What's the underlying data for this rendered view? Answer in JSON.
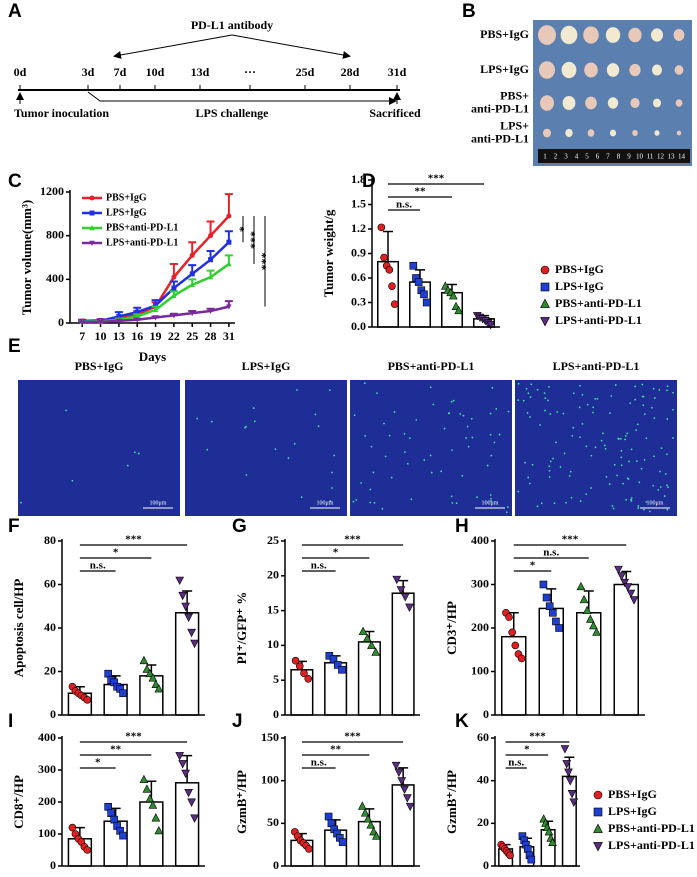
{
  "timeline": {
    "panel": "A",
    "antibody": "PD-L1 antibody",
    "days": [
      "0d",
      "3d",
      "7d",
      "10d",
      "13d",
      "···",
      "25d",
      "28d",
      "31d"
    ],
    "start": "Tumor inoculation",
    "challenge": "LPS challenge",
    "end": "Sacrificed"
  },
  "photo": {
    "panel": "B",
    "rows": [
      [
        "PBS+IgG"
      ],
      [
        "LPS+IgG"
      ],
      [
        "PBS+",
        "anti-PD-L1"
      ],
      [
        "LPS+",
        "anti-PD-L1"
      ]
    ],
    "ruler": [
      "1",
      "2",
      "3",
      "4",
      "5",
      "6",
      "7",
      "8",
      "9",
      "10",
      "11",
      "12",
      "13",
      "14"
    ]
  },
  "microscopy": {
    "panel": "E",
    "titles": [
      "PBS+IgG",
      "LPS+IgG",
      "PBS+anti-PD-L1",
      "LPS+anti-PD-L1"
    ],
    "scale_bar": "100μm"
  },
  "chart_data": [
    {
      "panel": "C",
      "type": "line",
      "x_label": "Days",
      "y_label": "Tumor volume(mm³)",
      "x": [
        7,
        10,
        13,
        16,
        19,
        22,
        25,
        28,
        31
      ],
      "xlim": [
        5,
        32
      ],
      "xticks": [
        7,
        10,
        13,
        16,
        19,
        22,
        25,
        28,
        31
      ],
      "ylim": [
        0,
        1200
      ],
      "yticks": [
        0,
        400,
        800,
        1200
      ],
      "legend": "upper left",
      "significance": [
        "*",
        "***",
        "***"
      ],
      "series": [
        {
          "name": "PBS+IgG",
          "color": "#e8202a",
          "marker": "circle",
          "values": [
            20,
            25,
            40,
            80,
            150,
            420,
            620,
            800,
            980
          ],
          "errors": [
            10,
            10,
            15,
            30,
            40,
            120,
            120,
            130,
            200
          ]
        },
        {
          "name": "LPS+IgG",
          "color": "#2030e0",
          "marker": "square",
          "values": [
            15,
            20,
            60,
            100,
            160,
            320,
            450,
            580,
            740
          ],
          "errors": [
            10,
            10,
            40,
            40,
            50,
            60,
            80,
            80,
            100
          ]
        },
        {
          "name": "PBS+anti-PD-L1",
          "color": "#30d030",
          "marker": "triangle",
          "values": [
            10,
            15,
            30,
            60,
            120,
            250,
            350,
            420,
            540
          ],
          "errors": [
            5,
            5,
            10,
            20,
            30,
            40,
            50,
            60,
            80
          ]
        },
        {
          "name": "LPS+anti-PD-L1",
          "color": "#7a2a9a",
          "marker": "triangle-down",
          "values": [
            5,
            10,
            20,
            30,
            50,
            70,
            90,
            110,
            150
          ],
          "errors": [
            5,
            5,
            5,
            10,
            10,
            15,
            20,
            20,
            50
          ]
        }
      ]
    },
    {
      "panel": "D",
      "type": "bar",
      "y_label": "Tumor weight/g",
      "ylim": [
        0,
        1.8
      ],
      "yticks": [
        {
          "value": 0,
          "label": "0.0"
        },
        0.3,
        0.6,
        0.9,
        1.2,
        1.5,
        1.8
      ],
      "legend": "right",
      "significance": [
        "n.s.",
        "**",
        "***"
      ],
      "series": [
        {
          "name": "PBS+IgG",
          "color": "#e02020",
          "marker": "circle",
          "values": [
            0.8
          ],
          "errors": [
            0.37
          ],
          "points": [
            1.22,
            0.85,
            0.75,
            0.7,
            0.5,
            0.28
          ]
        },
        {
          "name": "LPS+IgG",
          "color": "#1f3fd0",
          "marker": "square",
          "values": [
            0.55
          ],
          "errors": [
            0.15
          ],
          "points": [
            0.75,
            0.6,
            0.55,
            0.45,
            0.4,
            0.3
          ]
        },
        {
          "name": "PBS+anti-PD-L1",
          "color": "#2e8b2e",
          "marker": "triangle",
          "values": [
            0.42
          ],
          "errors": [
            0.1
          ],
          "points": [
            0.5,
            0.45,
            0.42,
            0.38,
            0.25,
            0.2
          ]
        },
        {
          "name": "LPS+anti-PD-L1",
          "color": "#5a2d82",
          "marker": "triangle-down",
          "values": [
            0.1
          ],
          "errors": [
            0.04
          ],
          "points": [
            0.14,
            0.12,
            0.1,
            0.08,
            0.05,
            0.03
          ]
        }
      ]
    },
    {
      "panel": "F",
      "type": "bar",
      "y_label": "Apoptosis cell/HP",
      "ylim": [
        0,
        80
      ],
      "yticks": [
        0,
        20,
        40,
        60,
        80
      ],
      "significance": [
        "n.s.",
        "*",
        "***"
      ],
      "series": [
        {
          "color": "#e02020",
          "marker": "circle",
          "values": [
            10
          ],
          "errors": [
            3
          ],
          "points": [
            13,
            11,
            10,
            9,
            8,
            7
          ]
        },
        {
          "color": "#1f3fd0",
          "marker": "square",
          "values": [
            14
          ],
          "errors": [
            4
          ],
          "points": [
            19,
            16,
            15,
            13,
            12,
            10
          ]
        },
        {
          "color": "#2e8b2e",
          "marker": "triangle",
          "values": [
            18
          ],
          "errors": [
            5
          ],
          "points": [
            25,
            21,
            19,
            17,
            14,
            12
          ]
        },
        {
          "color": "#5a2d82",
          "marker": "triangle-down",
          "values": [
            47
          ],
          "errors": [
            10
          ],
          "points": [
            62,
            55,
            50,
            45,
            38,
            33
          ]
        }
      ]
    },
    {
      "panel": "G",
      "type": "bar",
      "y_label": "PI⁺/GFP⁺ %",
      "ylim": [
        0,
        25
      ],
      "yticks": [
        0,
        5,
        10,
        15,
        20,
        25
      ],
      "significance": [
        "n.s.",
        "*",
        "***"
      ],
      "series": [
        {
          "color": "#e02020",
          "marker": "circle",
          "values": [
            6.5
          ],
          "errors": [
            1.2
          ],
          "points": [
            7.8,
            7,
            6,
            5.2
          ]
        },
        {
          "color": "#1f3fd0",
          "marker": "square",
          "values": [
            7.5
          ],
          "errors": [
            1
          ],
          "points": [
            8.5,
            8,
            7.2,
            6.5
          ]
        },
        {
          "color": "#2e8b2e",
          "marker": "triangle",
          "values": [
            10.5
          ],
          "errors": [
            1.5
          ],
          "points": [
            12,
            11,
            10,
            9
          ]
        },
        {
          "color": "#5a2d82",
          "marker": "triangle-down",
          "values": [
            17.5
          ],
          "errors": [
            1.8
          ],
          "points": [
            19.5,
            18,
            17,
            15.5
          ]
        }
      ]
    },
    {
      "panel": "H",
      "type": "bar",
      "y_label": "CD3⁺/HP",
      "ylim": [
        0,
        400
      ],
      "yticks": [
        0,
        100,
        200,
        300,
        400
      ],
      "significance": [
        "*",
        "n.s.",
        "***"
      ],
      "series": [
        {
          "color": "#e02020",
          "marker": "circle",
          "values": [
            180
          ],
          "errors": [
            55
          ],
          "points": [
            235,
            225,
            190,
            160,
            140,
            130
          ]
        },
        {
          "color": "#1f3fd0",
          "marker": "square",
          "values": [
            245
          ],
          "errors": [
            45
          ],
          "points": [
            300,
            270,
            250,
            235,
            215,
            200
          ]
        },
        {
          "color": "#2e8b2e",
          "marker": "triangle",
          "values": [
            235
          ],
          "errors": [
            50
          ],
          "points": [
            295,
            265,
            240,
            220,
            205,
            190
          ]
        },
        {
          "color": "#5a2d82",
          "marker": "triangle-down",
          "values": [
            300
          ],
          "errors": [
            30
          ],
          "points": [
            335,
            320,
            305,
            295,
            280,
            265
          ]
        }
      ]
    },
    {
      "panel": "I",
      "type": "bar",
      "y_label": "CD8⁺/HP",
      "ylim": [
        0,
        400
      ],
      "yticks": [
        0,
        100,
        200,
        300,
        400
      ],
      "significance": [
        "*",
        "**",
        "***"
      ],
      "series": [
        {
          "color": "#e02020",
          "marker": "circle",
          "values": [
            85
          ],
          "errors": [
            35
          ],
          "points": [
            120,
            100,
            85,
            75,
            60,
            50
          ]
        },
        {
          "color": "#1f3fd0",
          "marker": "square",
          "values": [
            140
          ],
          "errors": [
            40
          ],
          "points": [
            185,
            165,
            145,
            125,
            110,
            95
          ]
        },
        {
          "color": "#2e8b2e",
          "marker": "triangle",
          "values": [
            200
          ],
          "errors": [
            65
          ],
          "points": [
            270,
            240,
            210,
            190,
            150,
            110
          ]
        },
        {
          "color": "#5a2d82",
          "marker": "triangle-down",
          "values": [
            260
          ],
          "errors": [
            85
          ],
          "points": [
            345,
            320,
            290,
            230,
            200,
            150
          ]
        }
      ]
    },
    {
      "panel": "J",
      "type": "bar",
      "y_label": "GzmB⁺/HP",
      "ylim": [
        0,
        150
      ],
      "yticks": [
        0,
        50,
        100,
        150
      ],
      "significance": [
        "n.s.",
        "**",
        "***"
      ],
      "series": [
        {
          "color": "#e02020",
          "marker": "circle",
          "values": [
            30
          ],
          "errors": [
            8
          ],
          "points": [
            40,
            35,
            30,
            27,
            24,
            20
          ]
        },
        {
          "color": "#1f3fd0",
          "marker": "square",
          "values": [
            42
          ],
          "errors": [
            12
          ],
          "points": [
            58,
            50,
            43,
            38,
            33,
            28
          ]
        },
        {
          "color": "#2e8b2e",
          "marker": "triangle",
          "values": [
            52
          ],
          "errors": [
            15
          ],
          "points": [
            70,
            62,
            55,
            48,
            40,
            35
          ]
        },
        {
          "color": "#5a2d82",
          "marker": "triangle-down",
          "values": [
            95
          ],
          "errors": [
            20
          ],
          "points": [
            118,
            110,
            100,
            90,
            80,
            70
          ]
        }
      ]
    },
    {
      "panel": "K",
      "type": "bar",
      "y_label": "GzmB⁺/HP",
      "ylim": [
        0,
        60
      ],
      "yticks": [
        0,
        20,
        40,
        60
      ],
      "legend": "right",
      "significance": [
        "n.s.",
        "*",
        "***"
      ],
      "series": [
        {
          "name": "PBS+IgG",
          "color": "#e02020",
          "marker": "circle",
          "values": [
            8
          ],
          "errors": [
            2
          ],
          "points": [
            10,
            9,
            8,
            7,
            6,
            5
          ]
        },
        {
          "name": "LPS+IgG",
          "color": "#1f3fd0",
          "marker": "square",
          "values": [
            9
          ],
          "errors": [
            4
          ],
          "points": [
            14,
            12,
            10,
            8,
            5,
            3
          ]
        },
        {
          "name": "PBS+anti-PD-L1",
          "color": "#2e8b2e",
          "marker": "triangle",
          "values": [
            17
          ],
          "errors": [
            4
          ],
          "points": [
            22,
            20,
            18,
            16,
            13,
            11
          ]
        },
        {
          "name": "LPS+anti-PD-L1",
          "color": "#5a2d82",
          "marker": "triangle-down",
          "values": [
            42
          ],
          "errors": [
            9
          ],
          "points": [
            55,
            48,
            44,
            40,
            34,
            30
          ]
        }
      ]
    }
  ]
}
